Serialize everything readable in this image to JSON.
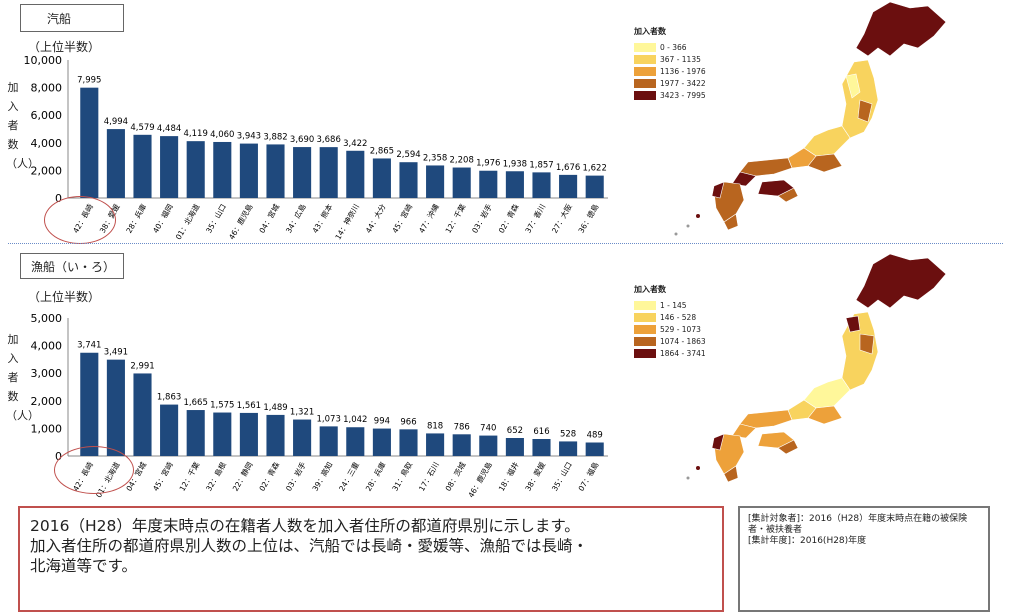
{
  "panels": [
    {
      "section_label": "汽船",
      "subtitle": "（上位半数）",
      "ylabel": "加入者数（人）",
      "chart_data": {
        "type": "bar",
        "categories": [
          "42：長崎",
          "38：愛媛",
          "28：兵庫",
          "40：福岡",
          "01：北海道",
          "35：山口",
          "46：鹿児島",
          "04：宮城",
          "34：広島",
          "43：熊本",
          "14：神奈川",
          "44：大分",
          "45：宮崎",
          "47：沖縄",
          "12：千葉",
          "03：岩手",
          "02：青森",
          "37：香川",
          "27：大阪",
          "36：徳島"
        ],
        "values": [
          7995,
          4994,
          4579,
          4484,
          4119,
          4060,
          3943,
          3882,
          3690,
          3686,
          3422,
          2865,
          2594,
          2358,
          2208,
          1976,
          1938,
          1857,
          1676,
          1622
        ],
        "value_labels": [
          "7,995",
          "4,994",
          "4,579",
          "4,484",
          "4,119",
          "4,060",
          "3,943",
          "3,882",
          "3,690",
          "3,686",
          "3,422",
          "2,865",
          "2,594",
          "2,358",
          "2,208",
          "1,976",
          "1,938",
          "1,857",
          "1,676",
          "1,622"
        ],
        "yticks": [
          "0",
          "2,000",
          "4,000",
          "6,000",
          "8,000",
          "10,000"
        ],
        "ylim": [
          0,
          10000
        ],
        "color": "#1f497d"
      },
      "map_legend": {
        "title": "加入者数",
        "items": [
          {
            "label": "0 - 366",
            "color": "#fff79a"
          },
          {
            "label": "367 - 1135",
            "color": "#f8d35e"
          },
          {
            "label": "1136 - 1976",
            "color": "#eda13a"
          },
          {
            "label": "1977 - 3422",
            "color": "#b8651f"
          },
          {
            "label": "3423 - 7995",
            "color": "#6b0f0f"
          }
        ]
      }
    },
    {
      "section_label": "漁船（い・ろ）",
      "subtitle": "（上位半数）",
      "ylabel": "加入者数（人）",
      "chart_data": {
        "type": "bar",
        "categories": [
          "42：長崎",
          "01：北海道",
          "04：宮城",
          "45：宮崎",
          "12：千葉",
          "32：島根",
          "22：静岡",
          "02：青森",
          "03：岩手",
          "39：高知",
          "24：三重",
          "28：兵庫",
          "31：鳥取",
          "17：石川",
          "08：茨城",
          "46：鹿児島",
          "18：福井",
          "38：愛媛",
          "35：山口",
          "07：福島"
        ],
        "values": [
          3741,
          3491,
          2991,
          1863,
          1665,
          1575,
          1561,
          1489,
          1321,
          1073,
          1042,
          994,
          966,
          818,
          786,
          740,
          652,
          616,
          528,
          489
        ],
        "value_labels": [
          "3,741",
          "3,491",
          "2,991",
          "1,863",
          "1,665",
          "1,575",
          "1,561",
          "1,489",
          "1,321",
          "1,073",
          "1,042",
          "994",
          "966",
          "818",
          "786",
          "740",
          "652",
          "616",
          "528",
          "489"
        ],
        "yticks": [
          "0",
          "1,000",
          "2,000",
          "3,000",
          "4,000",
          "5,000"
        ],
        "ylim": [
          0,
          5000
        ],
        "color": "#1f497d"
      },
      "map_legend": {
        "title": "加入者数",
        "items": [
          {
            "label": "1 - 145",
            "color": "#fff79a"
          },
          {
            "label": "146 - 528",
            "color": "#f8d35e"
          },
          {
            "label": "529 - 1073",
            "color": "#eda13a"
          },
          {
            "label": "1074 - 1863",
            "color": "#b8651f"
          },
          {
            "label": "1864 - 3741",
            "color": "#6b0f0f"
          }
        ]
      }
    }
  ],
  "note": {
    "line1": "2016（H28）年度末時点の在籍者人数を加入者住所の都道府県別に示します。",
    "line2": "加入者住所の都道府県別人数の上位は、汽船では長崎・愛媛等、漁船では長崎・",
    "line3": "北海道等です。"
  },
  "meta": {
    "line1": "[集計対象者]：2016（H28）年度末時点在籍の被保険者・被扶養者",
    "line2": "[集計年度]：2016(H28)年度"
  }
}
